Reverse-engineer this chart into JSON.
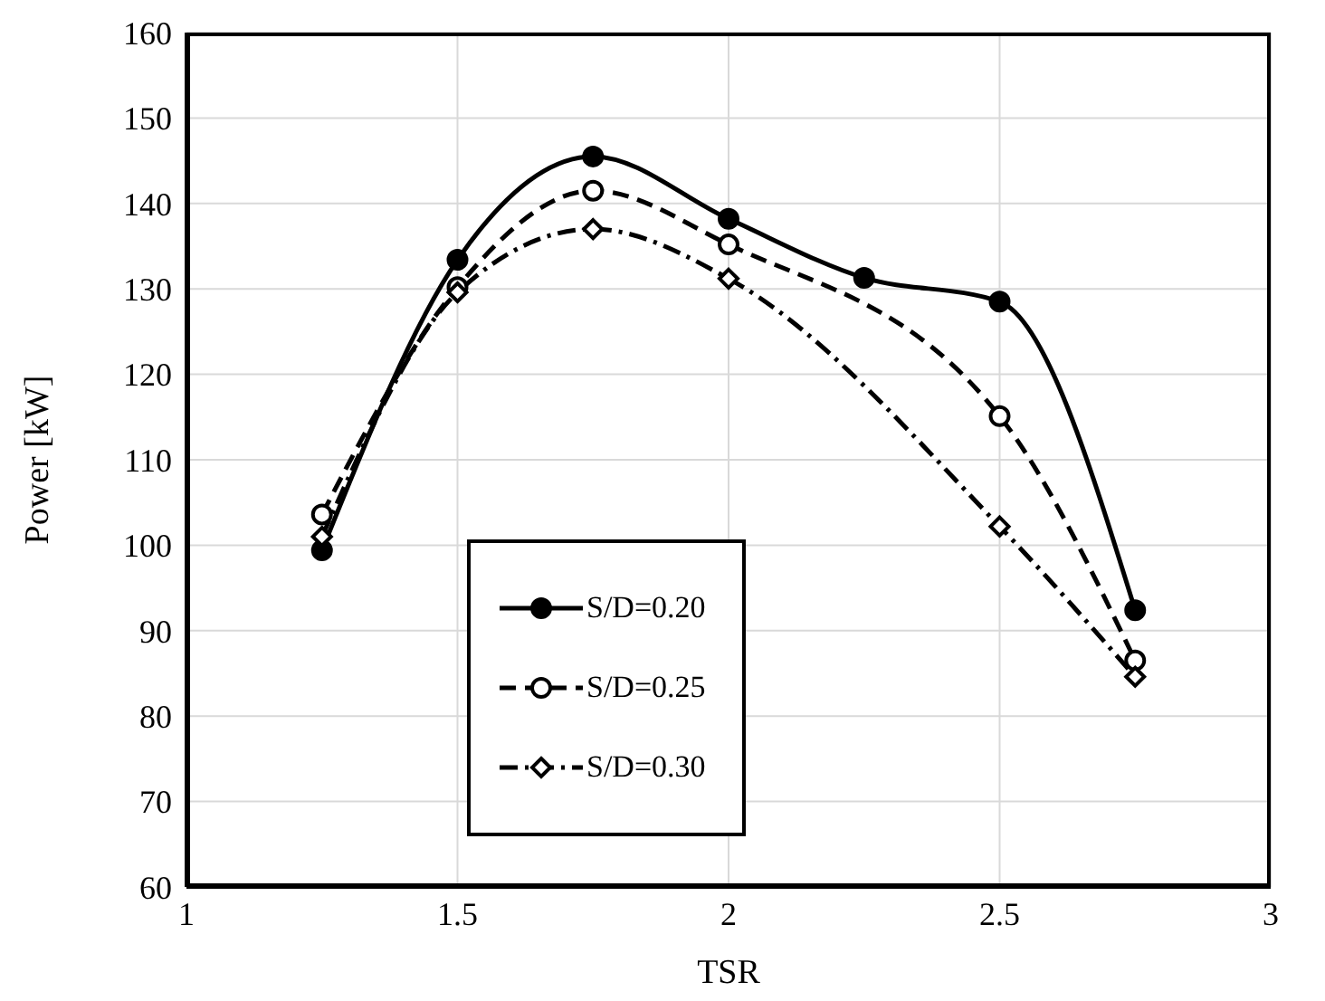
{
  "chart_data": {
    "type": "line",
    "xlabel": "TSR",
    "ylabel": "Power [kW]",
    "xlim": [
      1,
      3
    ],
    "xticks": [
      1,
      1.5,
      2,
      2.5,
      3
    ],
    "ylim": [
      60,
      160
    ],
    "yticks": [
      60,
      70,
      80,
      90,
      100,
      110,
      120,
      130,
      140,
      150,
      160
    ],
    "grid": true,
    "legend": "bottom left",
    "series": [
      {
        "name": "S/D=0.20",
        "color": "#000000",
        "marker": "circle",
        "line_style": "solid",
        "x": [
          1.25,
          1.5,
          1.75,
          2.0,
          2.25,
          2.5,
          2.75
        ],
        "values": [
          99.4,
          133.4,
          145.5,
          138.2,
          131.3,
          128.5,
          92.4
        ]
      },
      {
        "name": "S/D=0.25",
        "color": "#000000",
        "marker": "circle",
        "line_style": "dashed",
        "x": [
          1.25,
          1.5,
          1.75,
          2.0,
          2.5,
          2.75
        ],
        "values": [
          103.6,
          130.2,
          141.5,
          135.2,
          115.1,
          86.5
        ]
      },
      {
        "name": "S/D=0.30",
        "color": "#000000",
        "marker": "diamond",
        "line_style": "dashdot",
        "x": [
          1.25,
          1.5,
          1.75,
          2.0,
          2.5,
          2.75
        ],
        "values": [
          101.0,
          129.6,
          137.0,
          131.2,
          102.2,
          84.6
        ]
      }
    ]
  }
}
